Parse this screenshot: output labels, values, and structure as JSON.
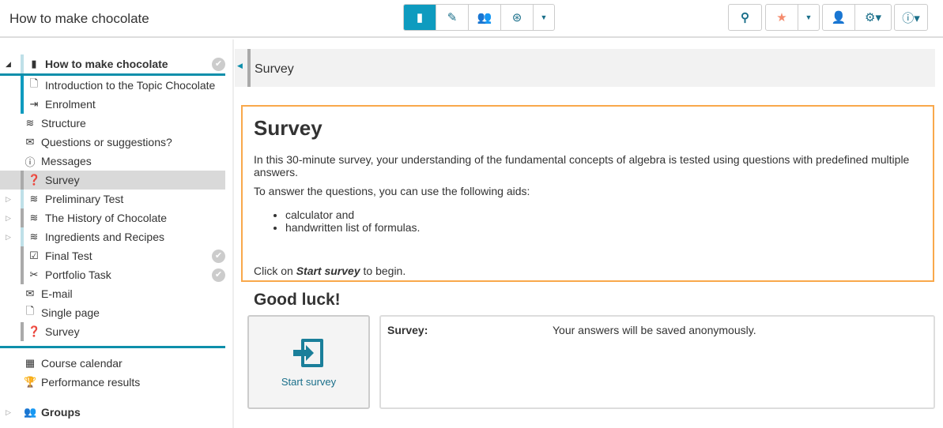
{
  "header": {
    "title": "How to make chocolate",
    "view_buttons": [
      {
        "icon": "book-icon",
        "active": true
      },
      {
        "icon": "pencil-icon"
      },
      {
        "icon": "users-icon"
      },
      {
        "icon": "badge-check-icon"
      },
      {
        "icon": "caret-down-icon"
      }
    ],
    "tool_buttons": [
      "search-icon",
      "star-icon",
      "caret-down-icon",
      "user-globe-icon",
      "gears-icon",
      "help-icon"
    ]
  },
  "sidebar": {
    "root": "How to make chocolate",
    "items": [
      {
        "label": "Introduction to the Topic Chocolate",
        "icon": "page-icon"
      },
      {
        "label": "Enrolment",
        "icon": "enrol-icon"
      },
      {
        "label": "Structure",
        "icon": "layers-icon"
      },
      {
        "label": "Questions or suggestions?",
        "icon": "envelope-icon"
      },
      {
        "label": "Messages",
        "icon": "info-icon"
      },
      {
        "label": "Survey",
        "icon": "question-bubble-icon",
        "selected": true
      },
      {
        "label": "Preliminary Test",
        "icon": "layers-icon"
      },
      {
        "label": "The History of Chocolate",
        "icon": "layers-icon"
      },
      {
        "label": "Ingredients and Recipes",
        "icon": "layers-icon"
      },
      {
        "label": "Final Test",
        "icon": "checkbox-icon",
        "done": true
      },
      {
        "label": "Portfolio Task",
        "icon": "portfolio-icon",
        "done": true
      },
      {
        "label": "E-mail",
        "icon": "envelope-icon"
      },
      {
        "label": "Single page",
        "icon": "page-icon"
      },
      {
        "label": "Survey",
        "icon": "question-bubble-icon"
      }
    ],
    "tools": [
      {
        "label": "Course calendar",
        "icon": "calendar-icon"
      },
      {
        "label": "Performance results",
        "icon": "trophy-icon"
      }
    ],
    "groups": "Groups"
  },
  "breadcrumb": {
    "title": "Survey"
  },
  "content": {
    "heading": "Survey",
    "intro": "In this 30-minute survey, your understanding of the fundamental concepts of algebra is tested using questions with predefined multiple answers.",
    "aids_intro": "To answer the questions, you can use the following aids:",
    "aids": [
      "calculator and",
      "handwritten list of formulas."
    ],
    "click_prefix": "Click on ",
    "click_bold": "Start survey",
    "click_suffix": " to begin."
  },
  "good_luck": "Good luck!",
  "start_button": "Start survey",
  "info": {
    "key": "Survey:",
    "value": "Your answers will be saved anonymously."
  },
  "colors": {
    "accent": "#0e9bbf",
    "highlight_border": "#f9a84b"
  }
}
